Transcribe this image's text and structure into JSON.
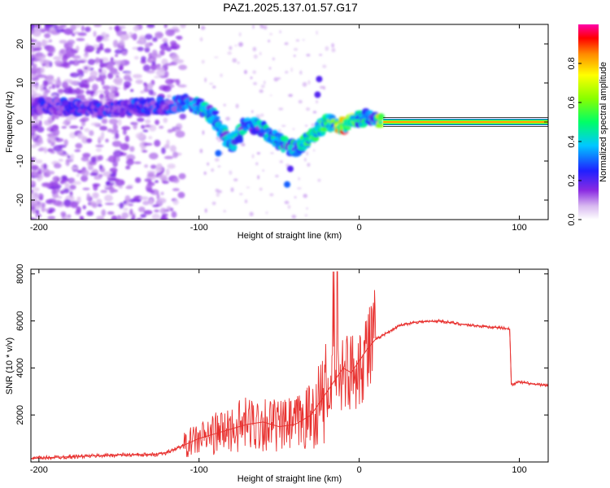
{
  "title": "PAZ1.2025.137.01.57.G17",
  "colors": {
    "snr_line": "#e8312f",
    "band_bg": "#ffffff",
    "frame": "#000000"
  },
  "chart_data": [
    {
      "type": "heatmap",
      "xlabel": "Height of straight line (km)",
      "ylabel": "Frequency (Hz)",
      "xlim": [
        -205,
        118
      ],
      "ylim": [
        -25,
        25
      ],
      "xticks": [
        -200,
        -100,
        0,
        100
      ],
      "xtick_labels": [
        "-200",
        "-100",
        "0",
        "100"
      ],
      "yticks": [
        -20,
        -10,
        0,
        10,
        20
      ],
      "ytick_labels": [
        "-20",
        "-10",
        "0",
        "10",
        "20"
      ],
      "colorbar": {
        "label": "Normalized spectral amplitude",
        "ticks": [
          0.0,
          0.2,
          0.4,
          0.6,
          0.8
        ],
        "tick_labels": [
          "0.0",
          "0.2",
          "0.4",
          "0.6",
          "0.8"
        ],
        "range": [
          0,
          1
        ]
      },
      "ridge": [
        {
          "x": -195,
          "freq": 4,
          "amp": 0.25
        },
        {
          "x": -180,
          "freq": 4,
          "amp": 0.3
        },
        {
          "x": -160,
          "freq": 3,
          "amp": 0.25
        },
        {
          "x": -140,
          "freq": 4,
          "amp": 0.3
        },
        {
          "x": -120,
          "freq": 4,
          "amp": 0.3
        },
        {
          "x": -110,
          "freq": 5,
          "amp": 0.4
        },
        {
          "x": -100,
          "freq": 4,
          "amp": 0.45
        },
        {
          "x": -90,
          "freq": 1,
          "amp": 0.45
        },
        {
          "x": -80,
          "freq": -6,
          "amp": 0.45
        },
        {
          "x": -70,
          "freq": 0,
          "amp": 0.4
        },
        {
          "x": -60,
          "freq": -2,
          "amp": 0.45
        },
        {
          "x": -50,
          "freq": -5,
          "amp": 0.45
        },
        {
          "x": -40,
          "freq": -7,
          "amp": 0.5
        },
        {
          "x": -30,
          "freq": -4,
          "amp": 0.55
        },
        {
          "x": -20,
          "freq": 0,
          "amp": 0.5
        },
        {
          "x": -10,
          "freq": -1,
          "amp": 0.85
        },
        {
          "x": 0,
          "freq": 1,
          "amp": 0.5
        },
        {
          "x": 10,
          "freq": 1,
          "amp": 0.4
        },
        {
          "x": 15,
          "freq": 0,
          "amp": 0.95
        },
        {
          "x": 115,
          "freq": 0,
          "amp": 0.95
        }
      ]
    },
    {
      "type": "line",
      "xlabel": "Height of straight line (km)",
      "ylabel": "SNR (10 * v/v)",
      "xlim": [
        -205,
        118
      ],
      "ylim": [
        0,
        8200
      ],
      "xticks": [
        -200,
        -100,
        0,
        100
      ],
      "xtick_labels": [
        "-200",
        "-100",
        "0",
        "100"
      ],
      "yticks": [
        2000,
        4000,
        6000,
        8000
      ],
      "ytick_labels": [
        "2000",
        "4000",
        "6000",
        "8000"
      ],
      "series": [
        {
          "color": "#e8312f",
          "x": [
            -205,
            -190,
            -170,
            -150,
            -130,
            -120,
            -110,
            -100,
            -90,
            -80,
            -70,
            -60,
            -50,
            -40,
            -30,
            -25,
            -20,
            -15,
            -10,
            -5,
            0,
            5,
            10,
            20,
            25,
            35,
            50,
            65,
            80,
            90,
            94,
            95,
            100,
            110,
            118
          ],
          "y": [
            150,
            200,
            250,
            300,
            300,
            400,
            700,
            1000,
            1200,
            1400,
            1600,
            1700,
            1500,
            1600,
            2000,
            2500,
            3000,
            3500,
            4000,
            3800,
            4300,
            4800,
            5200,
            5600,
            5800,
            5950,
            6000,
            5850,
            5750,
            5700,
            5650,
            3300,
            3400,
            3300,
            3250
          ]
        }
      ]
    }
  ]
}
